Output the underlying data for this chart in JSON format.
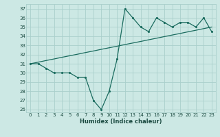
{
  "xlabel": "Humidex (Indice chaleur)",
  "bg_color": "#cce8e4",
  "grid_color": "#aacfcc",
  "line_color": "#1a6b5e",
  "x_data": [
    0,
    1,
    2,
    3,
    4,
    5,
    6,
    7,
    8,
    9,
    10,
    11,
    12,
    13,
    14,
    15,
    16,
    17,
    18,
    19,
    20,
    21,
    22,
    23
  ],
  "y_main": [
    31,
    31,
    30.5,
    30,
    30,
    30,
    29.5,
    29.5,
    27,
    26,
    28,
    31.5,
    37,
    36,
    35,
    34.5,
    36,
    35.5,
    35,
    35.5,
    35.5,
    35,
    36,
    34.5
  ],
  "y_trend": [
    31,
    31.17,
    31.35,
    31.52,
    31.7,
    31.87,
    32.04,
    32.22,
    32.39,
    32.57,
    32.74,
    32.91,
    33.09,
    33.26,
    33.43,
    33.61,
    33.78,
    33.96,
    34.13,
    34.3,
    34.48,
    34.65,
    34.83,
    35.0
  ],
  "xlim": [
    -0.5,
    23.5
  ],
  "ylim": [
    25.7,
    37.5
  ],
  "yticks": [
    26,
    27,
    28,
    29,
    30,
    31,
    32,
    33,
    34,
    35,
    36,
    37
  ],
  "xticks": [
    0,
    1,
    2,
    3,
    4,
    5,
    6,
    7,
    8,
    9,
    10,
    11,
    12,
    13,
    14,
    15,
    16,
    17,
    18,
    19,
    20,
    21,
    22,
    23
  ]
}
